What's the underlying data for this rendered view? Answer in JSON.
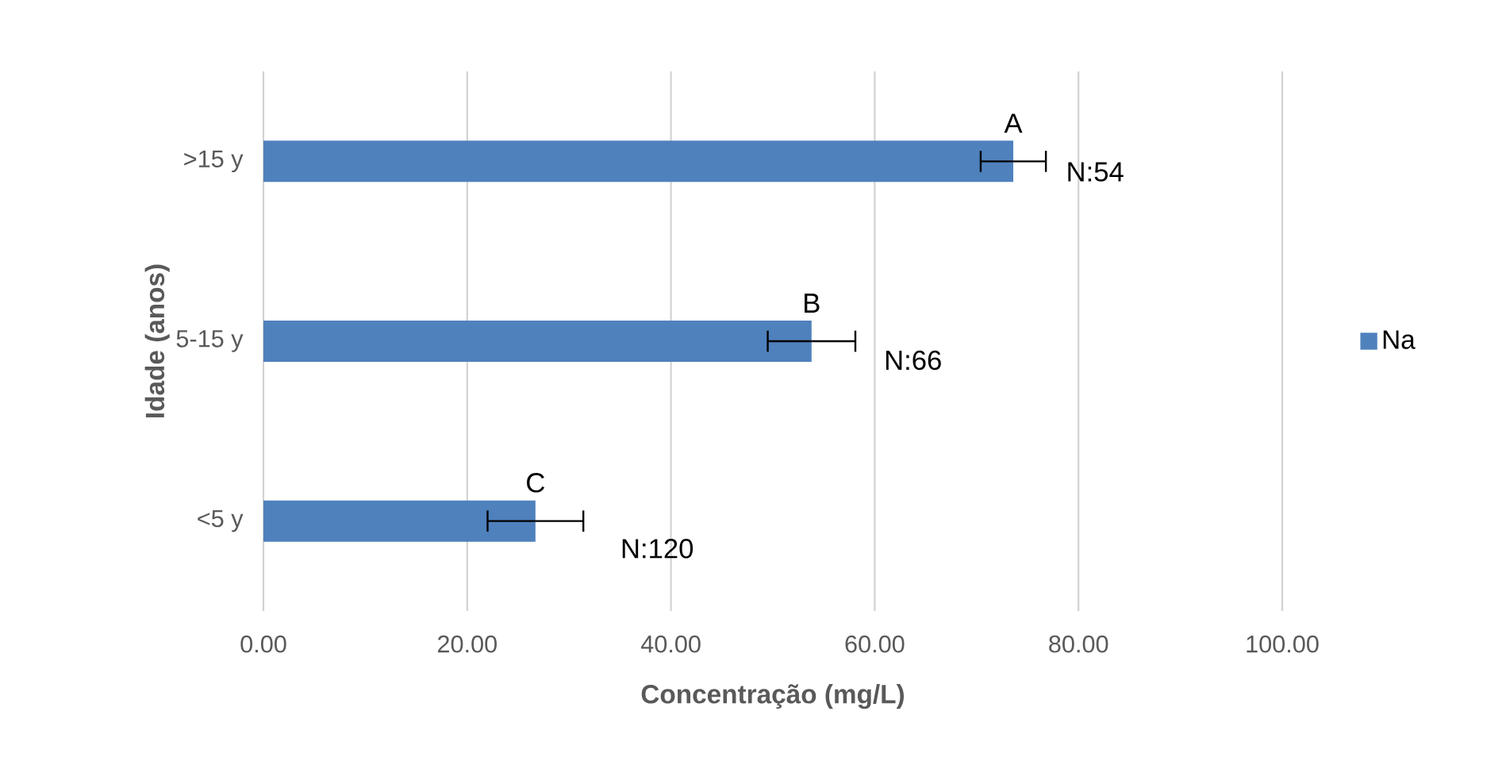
{
  "chart_data": {
    "type": "bar",
    "orientation": "horizontal",
    "xlabel": "Concentração (mg/L)",
    "ylabel": "Idade (anos)",
    "categories": [
      ">15 y",
      "5-15 y",
      "<5 y"
    ],
    "series": [
      {
        "name": "Na",
        "color": "#4f81bd",
        "values": [
          73.6,
          53.8,
          26.7
        ],
        "errors": [
          3.2,
          4.3,
          4.7
        ]
      }
    ],
    "xlim": [
      0,
      100
    ],
    "xticks": [
      {
        "value": 0,
        "label": "0.00"
      },
      {
        "value": 20,
        "label": "20.00"
      },
      {
        "value": 40,
        "label": "40.00"
      },
      {
        "value": 60,
        "label": "60.00"
      },
      {
        "value": 80,
        "label": "80.00"
      },
      {
        "value": 100,
        "label": "100.00"
      }
    ],
    "grid": "x",
    "legend": "right",
    "annotations": [
      {
        "text": "A",
        "x": 73.6,
        "y": ">15 y"
      },
      {
        "text": "N:54",
        "x": 76.8,
        "y": ">15 y"
      },
      {
        "text": "B",
        "x": 53.8,
        "y": "5-15 y"
      },
      {
        "text": "N:66",
        "x": 58.1,
        "y": "5-15 y"
      },
      {
        "text": "C",
        "x": 26.7,
        "y": "<5 y"
      },
      {
        "text": "N:120",
        "x": 31.4,
        "y": "<5 y"
      }
    ]
  }
}
